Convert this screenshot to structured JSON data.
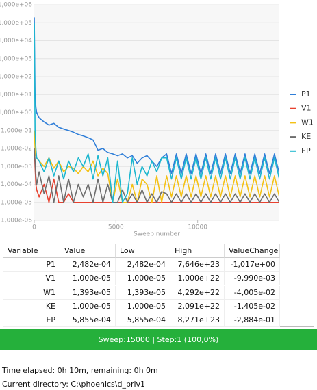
{
  "chart_data": {
    "type": "line",
    "log_y": true,
    "grid": true,
    "legend": "right",
    "xlabel": "Sweep number",
    "xlim": [
      0,
      15000
    ],
    "xticks": [
      0,
      5000,
      10000
    ],
    "ylim": [
      1e-06,
      1000000.0
    ],
    "yticks": [
      {
        "value": 1e-06,
        "label": "1,000e-06"
      },
      {
        "value": 1e-05,
        "label": "1,000e-05"
      },
      {
        "value": 0.0001,
        "label": "1,000e-04"
      },
      {
        "value": 0.001,
        "label": "1,000e-03"
      },
      {
        "value": 0.01,
        "label": "1,000e-02"
      },
      {
        "value": 0.1,
        "label": "1,000e-01"
      },
      {
        "value": 1,
        "label": "1,000e+00"
      },
      {
        "value": 10,
        "label": "1,000e+01"
      },
      {
        "value": 100,
        "label": "1,000e+02"
      },
      {
        "value": 1000,
        "label": "1,000e+03"
      },
      {
        "value": 10000,
        "label": "1,000e+04"
      },
      {
        "value": 100000,
        "label": "1,000e+05"
      },
      {
        "value": 1000000,
        "label": "1,000e+06"
      }
    ],
    "x": [
      0,
      50,
      100,
      150,
      300,
      600,
      900,
      1200,
      1500,
      1800,
      2100,
      2400,
      2700,
      3000,
      3300,
      3600,
      3900,
      4200,
      4500,
      4800,
      5100,
      5400,
      5700,
      6000,
      6300,
      6600,
      6900,
      7200,
      7500,
      7800,
      8100,
      8400,
      8700,
      9000,
      9300,
      9600,
      9900,
      10200,
      10500,
      10800,
      11100,
      11400,
      11700,
      12000,
      12300,
      12600,
      12900,
      13200,
      13500,
      13800,
      14100,
      14400,
      14700,
      15000
    ],
    "series": [
      {
        "name": "P1",
        "color": "#2f7ed8",
        "values": [
          200000,
          10,
          2,
          1,
          0.5,
          0.3,
          0.2,
          0.25,
          0.15,
          0.12,
          0.1,
          0.08,
          0.06,
          0.05,
          0.04,
          0.03,
          0.008,
          0.01,
          0.006,
          0.005,
          0.004,
          0.005,
          0.003,
          0.004,
          0.0015,
          0.003,
          0.004,
          0.002,
          0.001,
          0.003,
          0.005,
          0.0004,
          0.005,
          0.0004,
          0.005,
          0.0004,
          0.005,
          0.0004,
          0.005,
          0.0004,
          0.005,
          0.0004,
          0.005,
          0.0004,
          0.005,
          0.0004,
          0.005,
          0.0004,
          0.005,
          0.0004,
          0.005,
          0.0004,
          0.005,
          0.0004
        ]
      },
      {
        "name": "V1",
        "color": "#e8412f",
        "values": [
          0.01,
          0.001,
          0.0001,
          5e-05,
          2e-05,
          0.0001,
          1e-05,
          0.0002,
          1e-05,
          1e-05,
          3e-05,
          1e-05,
          1e-05,
          1e-05,
          1e-05,
          1e-05,
          1e-05,
          1e-05,
          1e-05,
          1e-05,
          1e-05,
          1e-05,
          1e-05,
          1e-05,
          1e-05,
          1e-05,
          1e-05,
          1e-05,
          1e-05,
          1e-05,
          1e-05,
          1e-05,
          1e-05,
          1e-05,
          1e-05,
          1e-05,
          1e-05,
          1e-05,
          1e-05,
          1e-05,
          1e-05,
          1e-05,
          1e-05,
          1e-05,
          1e-05,
          1e-05,
          1e-05,
          1e-05,
          1e-05,
          1e-05,
          1e-05,
          1e-05,
          1e-05,
          1e-05
        ]
      },
      {
        "name": "W1",
        "color": "#f4c116",
        "values": [
          0.1,
          0.01,
          0.004,
          0.003,
          0.002,
          0.001,
          0.003,
          0.0008,
          0.002,
          0.0005,
          0.001,
          0.0008,
          0.0004,
          0.001,
          0.0005,
          0.002,
          0.0003,
          0.0008,
          0.0004,
          1e-05,
          0.0002,
          1e-05,
          1e-05,
          0.0001,
          1e-05,
          0.0002,
          0.0001,
          1e-05,
          0.0003,
          1e-05,
          0.0003,
          2e-05,
          0.0003,
          2e-05,
          0.0003,
          2e-05,
          0.0003,
          2e-05,
          0.0003,
          2e-05,
          0.0003,
          2e-05,
          0.0003,
          2e-05,
          0.0003,
          2e-05,
          0.0003,
          2e-05,
          0.0003,
          2e-05,
          0.0003,
          2e-05,
          0.0003,
          2e-05
        ]
      },
      {
        "name": "KE",
        "color": "#6d6d6d",
        "values": [
          0.01,
          0.002,
          0.0003,
          0.0001,
          0.0005,
          3e-05,
          0.0003,
          1e-05,
          0.0003,
          1e-05,
          0.0002,
          1e-05,
          0.0001,
          2e-05,
          0.0001,
          1e-05,
          0.0002,
          1e-05,
          0.0001,
          1e-05,
          1e-05,
          5e-05,
          1e-05,
          3e-05,
          1e-05,
          5e-05,
          1e-05,
          3e-05,
          1e-05,
          4e-05,
          3e-05,
          1e-05,
          3e-05,
          1e-05,
          3e-05,
          1e-05,
          3e-05,
          1e-05,
          3e-05,
          1e-05,
          3e-05,
          1e-05,
          3e-05,
          1e-05,
          3e-05,
          1e-05,
          3e-05,
          1e-05,
          3e-05,
          1e-05,
          3e-05,
          1e-05,
          3e-05,
          1e-05
        ]
      },
      {
        "name": "EP",
        "color": "#1db7cf",
        "values": [
          100000,
          0.1,
          0.01,
          0.003,
          0.002,
          0.0005,
          0.003,
          0.0003,
          0.002,
          0.0002,
          0.002,
          0.0005,
          0.003,
          0.001,
          0.005,
          0.0002,
          0.004,
          0.0003,
          0.003,
          1e-05,
          0.002,
          1e-05,
          3e-05,
          0.003,
          0.0001,
          0.001,
          0.0003,
          0.002,
          0.0005,
          0.003,
          0.003,
          0.0002,
          0.003,
          0.0002,
          0.003,
          0.0002,
          0.003,
          0.0002,
          0.003,
          0.0002,
          0.003,
          0.0002,
          0.003,
          0.0002,
          0.003,
          0.0002,
          0.003,
          0.0002,
          0.003,
          0.0002,
          0.003,
          0.0002,
          0.003,
          0.0002
        ]
      }
    ]
  },
  "table": {
    "header": [
      "Variable",
      "Value",
      "Low",
      "High",
      "ValueChange"
    ],
    "rows": [
      [
        "P1",
        "2,482e-04",
        "2,482e-04",
        "7,646e+23",
        "-1,017e+00"
      ],
      [
        "V1",
        "1,000e-05",
        "1,000e-05",
        "1,000e+22",
        "-9,990e-03"
      ],
      [
        "W1",
        "1,393e-05",
        "1,393e-05",
        "4,292e+22",
        "-4,005e-02"
      ],
      [
        "KE",
        "1,000e-05",
        "1,000e-05",
        "2,091e+22",
        "-1,405e-02"
      ],
      [
        "EP",
        "5,855e-04",
        "5,855e-04",
        "8,271e+23",
        "-2,884e-01"
      ]
    ]
  },
  "status": "Sweep:15000 | Step:1  (100,0%)",
  "info": [
    "Time elapsed: 0h 10m, remaining: 0h 0m",
    "Current directory:  C:\\phoenics\\d_priv1"
  ]
}
